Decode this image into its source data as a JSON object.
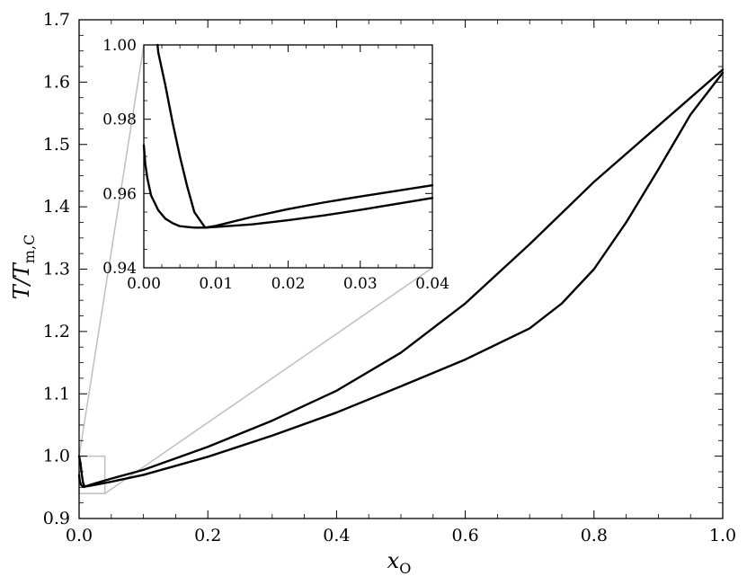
{
  "chart_data": [
    {
      "name": "main",
      "type": "line",
      "title": "",
      "xlabel": {
        "main": "x",
        "sub": "O"
      },
      "ylabel": {
        "main": "T/T",
        "sub": "m,C"
      },
      "xlim": [
        0.0,
        1.0
      ],
      "ylim": [
        0.9,
        1.7
      ],
      "xticks": [
        "0.0",
        "0.2",
        "0.4",
        "0.6",
        "0.8",
        "1.0"
      ],
      "yticks": [
        "0.9",
        "1.0",
        "1.1",
        "1.2",
        "1.3",
        "1.4",
        "1.5",
        "1.6",
        "1.7"
      ],
      "grid": false,
      "series": [
        {
          "x": [
            0.0,
            0.002,
            0.004,
            0.006,
            0.0085,
            0.02,
            0.05,
            0.1,
            0.2,
            0.3,
            0.4,
            0.5,
            0.6,
            0.7,
            0.8,
            0.9,
            1.0
          ],
          "y": [
            1.0,
            0.99,
            0.972,
            0.958,
            0.951,
            0.955,
            0.964,
            0.978,
            1.015,
            1.057,
            1.105,
            1.166,
            1.245,
            1.34,
            1.44,
            1.53,
            1.62
          ]
        },
        {
          "x": [
            0.0,
            0.001,
            0.003,
            0.006,
            0.0085,
            0.02,
            0.05,
            0.1,
            0.2,
            0.3,
            0.4,
            0.5,
            0.6,
            0.7,
            0.75,
            0.8,
            0.85,
            0.9,
            0.95,
            1.0
          ],
          "y": [
            0.97,
            0.96,
            0.954,
            0.951,
            0.951,
            0.953,
            0.959,
            0.97,
            0.999,
            1.033,
            1.07,
            1.112,
            1.155,
            1.205,
            1.245,
            1.3,
            1.375,
            1.46,
            1.548,
            1.615
          ]
        }
      ]
    },
    {
      "name": "inset",
      "type": "line",
      "xlim": [
        0.0,
        0.04
      ],
      "ylim": [
        0.94,
        1.0
      ],
      "xticks": [
        "0.00",
        "0.01",
        "0.02",
        "0.03",
        "0.04"
      ],
      "yticks": [
        "0.94",
        "0.96",
        "0.98",
        "1.00"
      ],
      "zoom_box": {
        "x": [
          0.0,
          0.04
        ],
        "y": [
          0.94,
          1.0
        ]
      },
      "series": [
        {
          "x": [
            0.0019,
            0.002,
            0.003,
            0.004,
            0.005,
            0.006,
            0.007,
            0.0085,
            0.01,
            0.015,
            0.02,
            0.025,
            0.03,
            0.035,
            0.04
          ],
          "y": [
            1.0,
            0.998,
            0.989,
            0.979,
            0.97,
            0.962,
            0.955,
            0.9508,
            0.9513,
            0.9537,
            0.9558,
            0.9576,
            0.9592,
            0.9607,
            0.9622
          ]
        },
        {
          "x": [
            0.0,
            0.0002,
            0.0005,
            0.001,
            0.002,
            0.003,
            0.004,
            0.005,
            0.006,
            0.007,
            0.0085,
            0.01,
            0.015,
            0.02,
            0.025,
            0.03,
            0.035,
            0.04
          ],
          "y": [
            0.973,
            0.968,
            0.964,
            0.9595,
            0.9555,
            0.9532,
            0.952,
            0.9512,
            0.951,
            0.9508,
            0.9508,
            0.951,
            0.9517,
            0.9528,
            0.9541,
            0.9556,
            0.9572,
            0.9588
          ]
        }
      ]
    }
  ]
}
